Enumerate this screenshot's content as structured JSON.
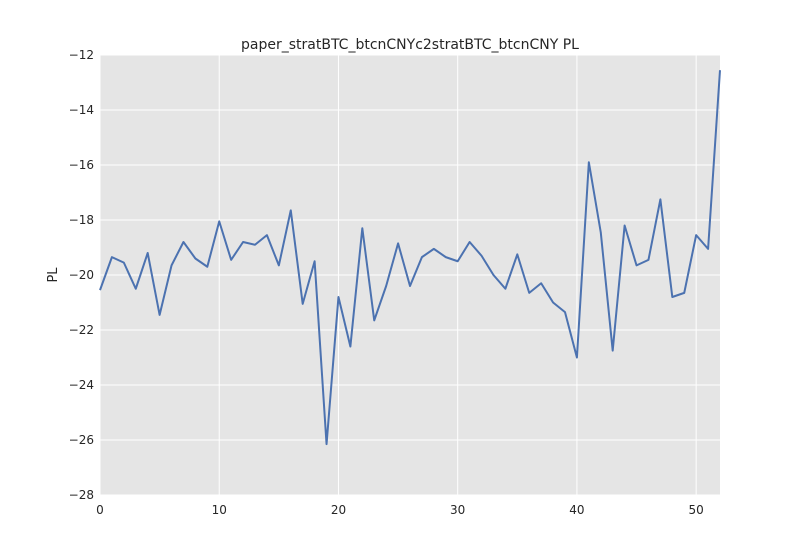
{
  "chart_data": {
    "type": "line",
    "title": "paper_stratBTC_btcnCNYc2stratBTC_btcnCNY PL",
    "xlabel": "",
    "ylabel": "PL",
    "xlim": [
      0,
      52
    ],
    "ylim": [
      -28,
      -12
    ],
    "xticks": [
      0,
      10,
      20,
      30,
      40,
      50
    ],
    "yticks": [
      -28,
      -26,
      -24,
      -22,
      -20,
      -18,
      -16,
      -14,
      -12
    ],
    "xtick_labels": [
      "0",
      "10",
      "20",
      "30",
      "40",
      "50"
    ],
    "ytick_labels": [
      "−28",
      "−26",
      "−24",
      "−22",
      "−20",
      "−18",
      "−16",
      "−14",
      "−12"
    ],
    "grid": true,
    "series": [
      {
        "color": "#4c72b0",
        "x": [
          0,
          1,
          2,
          3,
          4,
          5,
          6,
          7,
          8,
          9,
          10,
          11,
          12,
          13,
          14,
          15,
          16,
          17,
          18,
          19,
          20,
          21,
          22,
          23,
          24,
          25,
          26,
          27,
          28,
          29,
          30,
          31,
          32,
          33,
          34,
          35,
          36,
          37,
          38,
          39,
          40,
          41,
          42,
          43,
          44,
          45,
          46,
          47,
          48,
          49,
          50,
          51,
          52
        ],
        "y": [
          -20.55,
          -19.35,
          -19.55,
          -20.5,
          -19.2,
          -21.45,
          -19.65,
          -18.8,
          -19.4,
          -19.7,
          -18.05,
          -19.45,
          -18.8,
          -18.9,
          -18.55,
          -19.65,
          -17.65,
          -21.05,
          -19.5,
          -26.15,
          -20.8,
          -22.6,
          -18.3,
          -21.65,
          -20.4,
          -18.85,
          -20.4,
          -19.35,
          -19.05,
          -19.35,
          -19.5,
          -18.8,
          -19.3,
          -20.0,
          -20.5,
          -19.25,
          -20.65,
          -20.3,
          -21.0,
          -21.35,
          -23.0,
          -15.9,
          -18.45,
          -22.75,
          -18.2,
          -19.65,
          -19.45,
          -17.25,
          -20.8,
          -20.65,
          -18.55,
          -19.05,
          -12.55
        ]
      }
    ],
    "style": {
      "plot_background": "#e5e5e5",
      "grid_color": "#ffffff"
    }
  }
}
